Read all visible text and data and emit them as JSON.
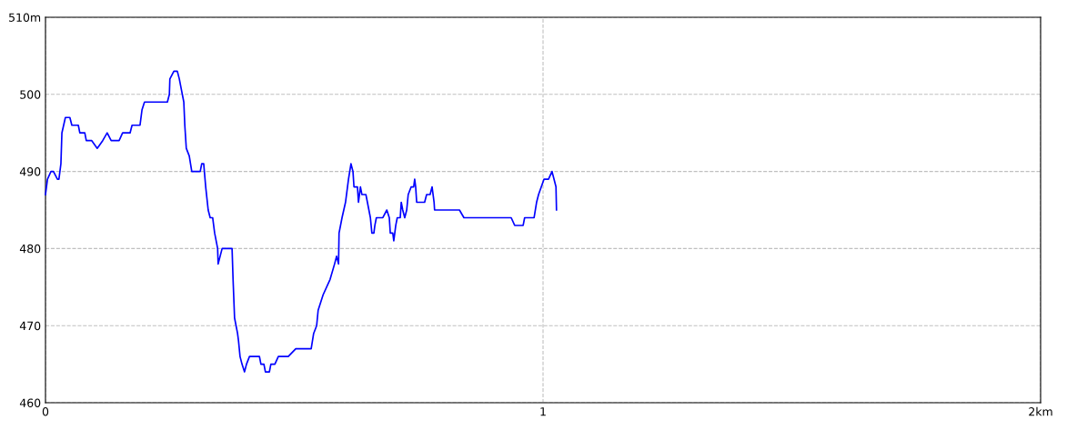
{
  "chart_data": {
    "type": "line",
    "x": [
      0,
      0.004,
      0.011,
      0.016,
      0.024,
      0.027,
      0.031,
      0.033,
      0.04,
      0.049,
      0.053,
      0.066,
      0.069,
      0.079,
      0.082,
      0.093,
      0.104,
      0.115,
      0.124,
      0.132,
      0.148,
      0.155,
      0.17,
      0.174,
      0.19,
      0.194,
      0.199,
      0.245,
      0.249,
      0.25,
      0.258,
      0.265,
      0.269,
      0.272,
      0.278,
      0.28,
      0.283,
      0.289,
      0.294,
      0.311,
      0.314,
      0.318,
      0.322,
      0.327,
      0.331,
      0.336,
      0.34,
      0.346,
      0.347,
      0.351,
      0.355,
      0.375,
      0.377,
      0.38,
      0.386,
      0.388,
      0.391,
      0.395,
      0.4,
      0.404,
      0.41,
      0.43,
      0.433,
      0.439,
      0.442,
      0.45,
      0.453,
      0.461,
      0.468,
      0.488,
      0.503,
      0.534,
      0.539,
      0.545,
      0.548,
      0.558,
      0.572,
      0.581,
      0.585,
      0.589,
      0.59,
      0.596,
      0.603,
      0.609,
      0.614,
      0.618,
      0.62,
      0.627,
      0.629,
      0.633,
      0.636,
      0.644,
      0.647,
      0.653,
      0.656,
      0.66,
      0.662,
      0.665,
      0.678,
      0.686,
      0.691,
      0.693,
      0.698,
      0.7,
      0.704,
      0.707,
      0.713,
      0.715,
      0.718,
      0.722,
      0.726,
      0.729,
      0.735,
      0.74,
      0.742,
      0.744,
      0.746,
      0.762,
      0.766,
      0.773,
      0.777,
      0.781,
      0.782,
      0.832,
      0.841,
      0.936,
      0.943,
      0.96,
      0.963,
      0.982,
      0.987,
      0.991,
      1.002,
      1.011,
      1.018,
      1.022,
      1.026,
      1.027
    ],
    "series": [
      {
        "color": "#0000ff",
        "values": [
          487,
          489,
          490,
          490,
          489,
          489,
          491,
          495,
          497,
          497,
          496,
          496,
          495,
          495,
          494,
          494,
          493,
          494,
          495,
          494,
          494,
          495,
          495,
          496,
          496,
          498,
          499,
          499,
          500,
          502,
          503,
          503,
          502,
          501,
          499,
          496,
          493,
          492,
          490,
          490,
          491,
          491,
          488,
          485,
          484,
          484,
          482,
          480,
          478,
          479,
          480,
          480,
          476,
          471,
          469,
          468,
          466,
          465,
          464,
          465,
          466,
          466,
          465,
          465,
          464,
          464,
          465,
          465,
          466,
          466,
          467,
          467,
          469,
          470,
          472,
          474,
          476,
          478,
          479,
          478,
          482,
          484,
          486,
          489,
          491,
          490,
          488,
          488,
          486,
          488,
          487,
          487,
          486,
          484,
          482,
          482,
          483,
          484,
          484,
          485,
          484,
          482,
          482,
          481,
          483,
          484,
          484,
          486,
          485,
          484,
          485,
          487,
          488,
          488,
          489,
          488,
          486,
          486,
          487,
          487,
          488,
          486,
          485,
          485,
          484,
          484,
          483,
          483,
          484,
          484,
          486,
          487,
          489,
          489,
          490,
          489,
          488,
          485
        ]
      }
    ],
    "xlim": [
      0,
      2
    ],
    "xticks": [
      0,
      1,
      {
        "value": 2,
        "label": "2km"
      }
    ],
    "ylim": [
      460,
      510
    ],
    "yticks": [
      460,
      470,
      480,
      490,
      500,
      {
        "value": 510,
        "label": "510m"
      }
    ],
    "grid": true,
    "line_style": "solid",
    "marker": "none"
  }
}
